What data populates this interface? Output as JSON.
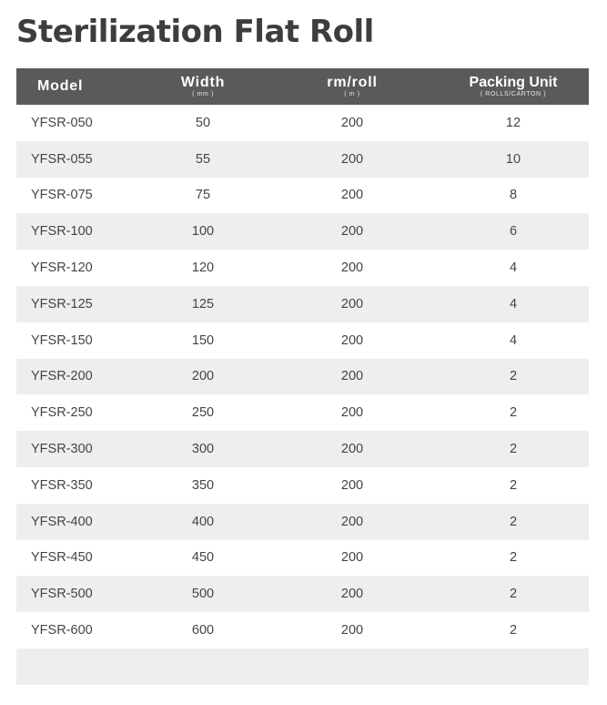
{
  "title": "Sterilization Flat Roll",
  "table": {
    "headers": {
      "model": "Model",
      "width": "Width",
      "width_unit": "( mm )",
      "rm_roll": "rm/roll",
      "rm_roll_unit": "( m )",
      "packing_unit": "Packing Unit",
      "packing_unit_sub": "( ROLLS/CARTON )"
    },
    "rows": [
      {
        "model": "YFSR-050",
        "width": "50",
        "rm_roll": "200",
        "packing": "12"
      },
      {
        "model": "YFSR-055",
        "width": "55",
        "rm_roll": "200",
        "packing": "10"
      },
      {
        "model": "YFSR-075",
        "width": "75",
        "rm_roll": "200",
        "packing": "8"
      },
      {
        "model": "YFSR-100",
        "width": "100",
        "rm_roll": "200",
        "packing": "6"
      },
      {
        "model": "YFSR-120",
        "width": "120",
        "rm_roll": "200",
        "packing": "4"
      },
      {
        "model": "YFSR-125",
        "width": "125",
        "rm_roll": "200",
        "packing": "4"
      },
      {
        "model": "YFSR-150",
        "width": "150",
        "rm_roll": "200",
        "packing": "4"
      },
      {
        "model": "YFSR-200",
        "width": "200",
        "rm_roll": "200",
        "packing": "2"
      },
      {
        "model": "YFSR-250",
        "width": "250",
        "rm_roll": "200",
        "packing": "2"
      },
      {
        "model": "YFSR-300",
        "width": "300",
        "rm_roll": "200",
        "packing": "2"
      },
      {
        "model": "YFSR-350",
        "width": "350",
        "rm_roll": "200",
        "packing": "2"
      },
      {
        "model": "YFSR-400",
        "width": "400",
        "rm_roll": "200",
        "packing": "2"
      },
      {
        "model": "YFSR-450",
        "width": "450",
        "rm_roll": "200",
        "packing": "2"
      },
      {
        "model": "YFSR-500",
        "width": "500",
        "rm_roll": "200",
        "packing": "2"
      },
      {
        "model": "YFSR-600",
        "width": "600",
        "rm_roll": "200",
        "packing": "2"
      }
    ]
  },
  "colors": {
    "header_bg": "#5a5a5a",
    "stripe_bg": "#eeeeee",
    "text": "#444444"
  }
}
